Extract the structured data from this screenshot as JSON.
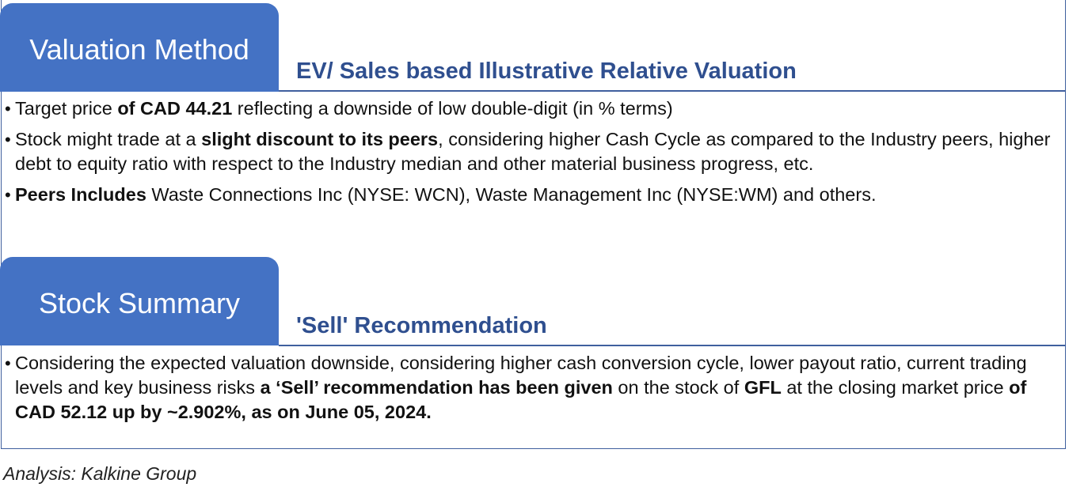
{
  "section1": {
    "tab_label": "Valuation Method",
    "subheading": "EV/ Sales based Illustrative Relative Valuation",
    "bullet1": {
      "t1": "Target price ",
      "b1": "of CAD 44.21",
      "t2": " reflecting a downside of low double-digit (in % terms)"
    },
    "bullet2": {
      "t1": "Stock might trade at a ",
      "b1": "slight discount to its peers",
      "t2": ", considering  higher Cash Cycle as compared to the Industry peers, higher debt to equity ratio with respect to the Industry median and other material business progress, etc."
    },
    "bullet3": {
      "b1": "Peers Includes",
      "t2": "  Waste Connections Inc (NYSE: WCN), Waste Management Inc (NYSE:WM) and others."
    }
  },
  "section2": {
    "tab_label": "Stock Summary",
    "subheading": "'Sell' Recommendation",
    "bullet1": {
      "t1": "Considering the expected valuation downside, considering  higher cash conversion cycle, lower payout ratio, current trading levels and key business risks ",
      "b1": "a ‘Sell’ recommendation has been given",
      "t2": " on the stock of  ",
      "b2": "GFL",
      "t3": " at the closing market price ",
      "b3": "of CAD 52.12 up by ~2.902%, as on June 05, 2024."
    }
  },
  "footer": {
    "text": "Analysis: Kalkine Group"
  },
  "colors": {
    "tab_bg": "#4472c4",
    "subheading": "#2f4f8f",
    "rule": "#3f5f9e"
  }
}
